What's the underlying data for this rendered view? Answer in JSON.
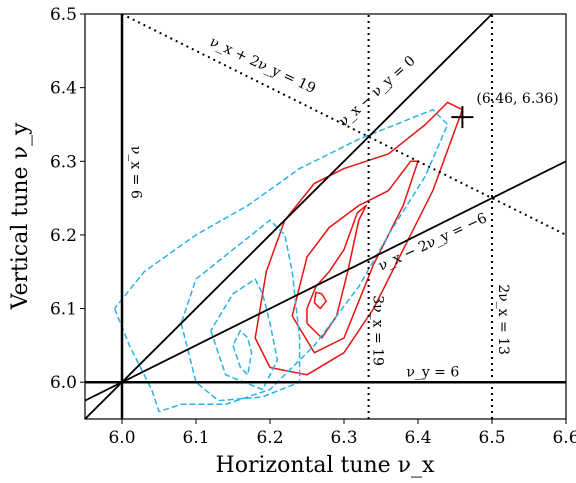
{
  "chart_data": {
    "type": "line",
    "title": "",
    "xlabel": "Horizontal tune ν_x",
    "ylabel": "Vertical tune ν_y",
    "xlim": [
      5.95,
      6.6
    ],
    "ylim": [
      5.95,
      6.5
    ],
    "x_ticks": [
      "6.0",
      "6.1",
      "6.2",
      "6.3",
      "6.4",
      "6.5",
      "6.6"
    ],
    "y_ticks": [
      "6.0",
      "6.1",
      "6.2",
      "6.3",
      "6.4",
      "6.5"
    ],
    "grid": false,
    "resonance_lines": [
      {
        "label": "ν_x = 6",
        "style": "solid",
        "width": 2.5,
        "points": [
          [
            6.0,
            5.95
          ],
          [
            6.0,
            6.5
          ]
        ]
      },
      {
        "label": "ν_y = 6",
        "style": "solid",
        "width": 2.5,
        "points": [
          [
            5.95,
            6.0
          ],
          [
            6.6,
            6.0
          ]
        ]
      },
      {
        "label": "ν_x − ν_y = 0",
        "style": "solid",
        "width": 1.8,
        "points": [
          [
            5.95,
            5.95
          ],
          [
            6.5,
            6.5
          ]
        ]
      },
      {
        "label": "ν_x − 2ν_y = −6",
        "style": "solid",
        "width": 1.8,
        "points": [
          [
            5.95,
            5.975
          ],
          [
            6.6,
            6.3
          ]
        ]
      },
      {
        "label": "ν_x + 2ν_y = 19",
        "style": "dotted",
        "width": 2,
        "points": [
          [
            6.0,
            6.5
          ],
          [
            6.6,
            6.2
          ]
        ]
      },
      {
        "label": "3ν_x = 19",
        "style": "dotted",
        "width": 2,
        "points": [
          [
            6.3333,
            5.95
          ],
          [
            6.3333,
            6.5
          ]
        ]
      },
      {
        "label": "2ν_x = 13",
        "style": "dotted",
        "width": 2,
        "points": [
          [
            6.5,
            5.95
          ],
          [
            6.5,
            6.5
          ]
        ]
      }
    ],
    "series": [
      {
        "color": "#e8130f",
        "style": "solid",
        "contours": [
          [
            [
              6.27,
              6.12
            ],
            [
              6.276,
              6.11
            ],
            [
              6.268,
              6.1
            ],
            [
              6.26,
              6.108
            ],
            [
              6.262,
              6.122
            ],
            [
              6.27,
              6.12
            ]
          ],
          [
            [
              6.25,
              6.08
            ],
            [
              6.27,
              6.06
            ],
            [
              6.29,
              6.09
            ],
            [
              6.305,
              6.15
            ],
            [
              6.32,
              6.22
            ],
            [
              6.33,
              6.24
            ],
            [
              6.318,
              6.23
            ],
            [
              6.3,
              6.18
            ],
            [
              6.28,
              6.15
            ],
            [
              6.262,
              6.13
            ],
            [
              6.25,
              6.1
            ],
            [
              6.25,
              6.08
            ]
          ],
          [
            [
              6.23,
              6.09
            ],
            [
              6.26,
              6.04
            ],
            [
              6.3,
              6.06
            ],
            [
              6.32,
              6.11
            ],
            [
              6.34,
              6.16
            ],
            [
              6.38,
              6.24
            ],
            [
              6.4,
              6.3
            ],
            [
              6.39,
              6.3
            ],
            [
              6.36,
              6.26
            ],
            [
              6.32,
              6.24
            ],
            [
              6.28,
              6.21
            ],
            [
              6.25,
              6.17
            ],
            [
              6.24,
              6.13
            ],
            [
              6.23,
              6.09
            ]
          ],
          [
            [
              6.18,
              6.06
            ],
            [
              6.2,
              6.02
            ],
            [
              6.25,
              6.01
            ],
            [
              6.3,
              6.04
            ],
            [
              6.34,
              6.1
            ],
            [
              6.38,
              6.18
            ],
            [
              6.42,
              6.26
            ],
            [
              6.46,
              6.37
            ],
            [
              6.44,
              6.38
            ],
            [
              6.41,
              6.35
            ],
            [
              6.36,
              6.31
            ],
            [
              6.3,
              6.29
            ],
            [
              6.26,
              6.27
            ],
            [
              6.22,
              6.22
            ],
            [
              6.195,
              6.15
            ],
            [
              6.18,
              6.06
            ]
          ]
        ]
      },
      {
        "color": "#29b3e6",
        "style": "dashed",
        "contours": [
          [
            [
              6.15,
              6.05
            ],
            [
              6.16,
              6.02
            ],
            [
              6.17,
              6.01
            ],
            [
              6.175,
              6.04
            ],
            [
              6.17,
              6.06
            ],
            [
              6.16,
              6.07
            ],
            [
              6.15,
              6.05
            ]
          ],
          [
            [
              6.12,
              6.07
            ],
            [
              6.14,
              6.01
            ],
            [
              6.19,
              5.99
            ],
            [
              6.21,
              6.03
            ],
            [
              6.2,
              6.08
            ],
            [
              6.19,
              6.12
            ],
            [
              6.18,
              6.14
            ],
            [
              6.15,
              6.12
            ],
            [
              6.12,
              6.07
            ]
          ],
          [
            [
              6.08,
              6.08
            ],
            [
              6.1,
              6.0
            ],
            [
              6.13,
              5.975
            ],
            [
              6.19,
              5.98
            ],
            [
              6.24,
              6.0
            ],
            [
              6.24,
              6.06
            ],
            [
              6.23,
              6.15
            ],
            [
              6.22,
              6.2
            ],
            [
              6.2,
              6.22
            ],
            [
              6.15,
              6.18
            ],
            [
              6.1,
              6.14
            ],
            [
              6.08,
              6.08
            ]
          ],
          [
            [
              5.99,
              6.1
            ],
            [
              6.01,
              6.05
            ],
            [
              6.04,
              5.99
            ],
            [
              6.05,
              5.96
            ],
            [
              6.08,
              5.97
            ],
            [
              6.14,
              5.97
            ],
            [
              6.2,
              5.99
            ],
            [
              6.26,
              6.05
            ],
            [
              6.32,
              6.13
            ],
            [
              6.36,
              6.2
            ],
            [
              6.41,
              6.28
            ],
            [
              6.44,
              6.35
            ],
            [
              6.42,
              6.37
            ],
            [
              6.37,
              6.35
            ],
            [
              6.32,
              6.33
            ],
            [
              6.24,
              6.29
            ],
            [
              6.17,
              6.24
            ],
            [
              6.1,
              6.2
            ],
            [
              6.03,
              6.15
            ],
            [
              5.99,
              6.1
            ]
          ]
        ]
      }
    ],
    "marker": {
      "x": 6.46,
      "y": 6.36,
      "symbol": "+",
      "label": "(6.46, 6.36)"
    },
    "annotations": [
      {
        "text": "ν_x + 2ν_y = 19",
        "x": 6.19,
        "y": 6.43,
        "rotate": 25
      },
      {
        "text": "ν_x − ν_y = 0",
        "x": 6.345,
        "y": 6.395,
        "rotate": -42
      },
      {
        "text": "ν_x = 6",
        "x": 6.018,
        "y": 6.285,
        "rotate": 90
      },
      {
        "text": "ν_x − 2ν_y = −6",
        "x": 6.42,
        "y": 6.19,
        "rotate": -25
      },
      {
        "text": "3ν_x = 19",
        "x": 6.345,
        "y": 6.07,
        "rotate": 90
      },
      {
        "text": "2ν_x = 13",
        "x": 6.515,
        "y": 6.085,
        "rotate": 90
      },
      {
        "text": "ν_y = 6",
        "x": 6.42,
        "y": 6.013,
        "rotate": 0
      }
    ]
  }
}
